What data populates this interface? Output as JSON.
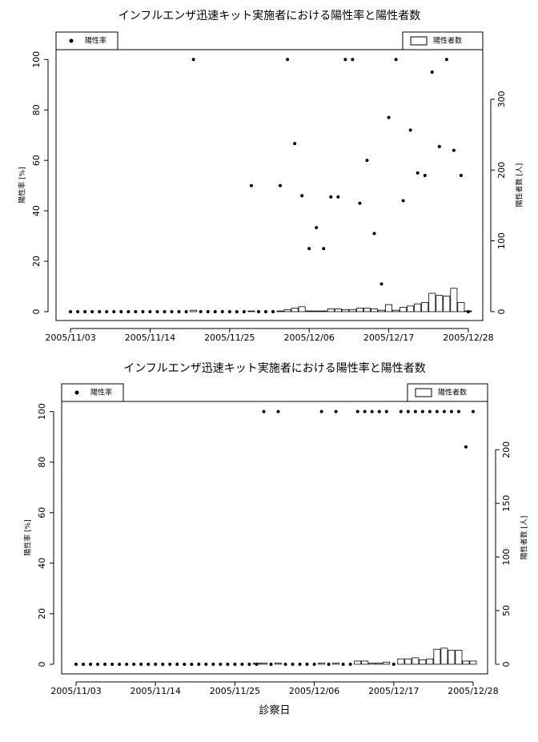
{
  "chart_data": [
    {
      "type": "combo",
      "title": "インフルエンザ迅速キット実施者における陽性率と陽性者数",
      "y_label": "陽性率 [%]",
      "y2_label": "陽性者数 [人]",
      "x": [
        "2005/11/03",
        "2005/11/04",
        "2005/11/05",
        "2005/11/06",
        "2005/11/07",
        "2005/11/08",
        "2005/11/09",
        "2005/11/10",
        "2005/11/11",
        "2005/11/12",
        "2005/11/13",
        "2005/11/14",
        "2005/11/15",
        "2005/11/16",
        "2005/11/17",
        "2005/11/18",
        "2005/11/19",
        "2005/11/20",
        "2005/11/21",
        "2005/11/22",
        "2005/11/23",
        "2005/11/24",
        "2005/11/25",
        "2005/11/26",
        "2005/11/27",
        "2005/11/28",
        "2005/11/29",
        "2005/11/30",
        "2005/12/01",
        "2005/12/02",
        "2005/12/03",
        "2005/12/04",
        "2005/12/05",
        "2005/12/06",
        "2005/12/07",
        "2005/12/08",
        "2005/12/09",
        "2005/12/10",
        "2005/12/11",
        "2005/12/12",
        "2005/12/13",
        "2005/12/14",
        "2005/12/15",
        "2005/12/16",
        "2005/12/17",
        "2005/12/18",
        "2005/12/19",
        "2005/12/20",
        "2005/12/21",
        "2005/12/22",
        "2005/12/23",
        "2005/12/24",
        "2005/12/25",
        "2005/12/26",
        "2005/12/27",
        "2005/12/28"
      ],
      "series": [
        {
          "name": "陽性率",
          "type": "scatter",
          "color": "#000000",
          "values": [
            0,
            0,
            0,
            0,
            0,
            0,
            0,
            0,
            0,
            0,
            0,
            0,
            0,
            0,
            0,
            0,
            0,
            100,
            0,
            0,
            0,
            0,
            0,
            0,
            0,
            50,
            0,
            0,
            0,
            50,
            100,
            66.7,
            46,
            25,
            33.3,
            25,
            45.5,
            45.5,
            100,
            100,
            43,
            60,
            31,
            11,
            77,
            100,
            44,
            72,
            55,
            54,
            95,
            65.5,
            100,
            64,
            54,
            0
          ]
        },
        {
          "name": "陽性者数",
          "type": "bar",
          "axis": "y2",
          "color": "#ffffff",
          "values": [
            0,
            0,
            0,
            0,
            0,
            0,
            0,
            0,
            0,
            0,
            0,
            0,
            0,
            0,
            0,
            0,
            0,
            2,
            0,
            0,
            0,
            0,
            0,
            0,
            0,
            1,
            0,
            0,
            0,
            1,
            3,
            5,
            7,
            1,
            1,
            1,
            4,
            4,
            3,
            3,
            5,
            5,
            4,
            2,
            10,
            2,
            6,
            8,
            11,
            13,
            26,
            23,
            22,
            33,
            13,
            1
          ]
        }
      ],
      "xlim": [
        "2005/11/01",
        "2005/12/30"
      ],
      "xticks": [
        "2005/11/03",
        "2005/11/14",
        "2005/11/25",
        "2005/12/06",
        "2005/12/17",
        "2005/12/28"
      ],
      "ylim": [
        -3.5,
        103.9
      ],
      "yticks": [
        0,
        20,
        40,
        60,
        80,
        100
      ],
      "y2lim": [
        -12.5,
        370
      ],
      "y2ticks": [
        0,
        100,
        200,
        300
      ]
    },
    {
      "type": "combo",
      "title": "インフルエンザ迅速キット実施者における陽性率と陽性者数",
      "x_label": "診察日",
      "y_label": "陽性率 [%]",
      "y2_label": "陽性者数 [人]",
      "x": [
        "2005/11/03",
        "2005/11/04",
        "2005/11/05",
        "2005/11/06",
        "2005/11/07",
        "2005/11/08",
        "2005/11/09",
        "2005/11/10",
        "2005/11/11",
        "2005/11/12",
        "2005/11/13",
        "2005/11/14",
        "2005/11/15",
        "2005/11/16",
        "2005/11/17",
        "2005/11/18",
        "2005/11/19",
        "2005/11/20",
        "2005/11/21",
        "2005/11/22",
        "2005/11/23",
        "2005/11/24",
        "2005/11/25",
        "2005/11/26",
        "2005/11/27",
        "2005/11/28",
        "2005/11/29",
        "2005/11/30",
        "2005/12/01",
        "2005/12/02",
        "2005/12/03",
        "2005/12/04",
        "2005/12/05",
        "2005/12/06",
        "2005/12/07",
        "2005/12/08",
        "2005/12/09",
        "2005/12/10",
        "2005/12/11",
        "2005/12/12",
        "2005/12/13",
        "2005/12/14",
        "2005/12/15",
        "2005/12/16",
        "2005/12/17",
        "2005/12/18",
        "2005/12/19",
        "2005/12/20",
        "2005/12/21",
        "2005/12/22",
        "2005/12/23",
        "2005/12/24",
        "2005/12/25",
        "2005/12/26",
        "2005/12/27",
        "2005/12/28"
      ],
      "series": [
        {
          "name": "陽性率",
          "type": "scatter",
          "color": "#000000",
          "values": [
            0,
            0,
            0,
            0,
            0,
            0,
            0,
            0,
            0,
            0,
            0,
            0,
            0,
            0,
            0,
            0,
            0,
            0,
            0,
            0,
            0,
            0,
            0,
            0,
            0,
            0,
            100,
            0,
            100,
            0,
            0,
            0,
            0,
            0,
            100,
            0,
            100,
            0,
            0,
            100,
            100,
            100,
            100,
            100,
            0,
            100,
            100,
            100,
            100,
            100,
            100,
            100,
            100,
            100,
            86,
            100
          ]
        },
        {
          "name": "陽性者数",
          "type": "bar",
          "axis": "y2",
          "color": "#ffffff",
          "values": [
            0,
            0,
            0,
            0,
            0,
            0,
            0,
            0,
            0,
            0,
            0,
            0,
            0,
            0,
            0,
            0,
            0,
            0,
            0,
            0,
            0,
            0,
            0,
            0,
            0,
            1,
            1,
            0,
            1,
            0,
            0,
            0,
            0,
            0,
            1,
            0,
            1,
            0,
            0,
            3,
            3,
            1,
            1,
            2,
            0,
            5,
            5,
            6,
            4,
            5,
            14,
            15,
            13,
            13,
            3,
            3
          ]
        }
      ],
      "xlim": [
        "2005/11/01",
        "2005/12/30"
      ],
      "xticks": [
        "2005/11/03",
        "2005/11/14",
        "2005/11/25",
        "2005/12/06",
        "2005/12/17",
        "2005/12/28"
      ],
      "ylim": [
        -3.8,
        104
      ],
      "yticks": [
        0,
        20,
        40,
        60,
        80,
        100
      ],
      "y2lim": [
        -9,
        245
      ],
      "y2ticks": [
        0,
        50,
        100,
        150,
        200
      ]
    }
  ]
}
